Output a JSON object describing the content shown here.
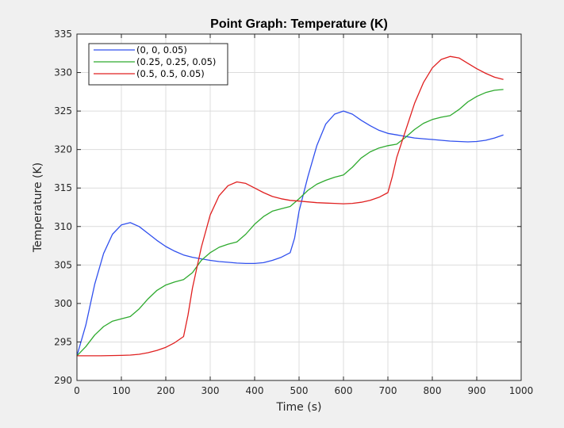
{
  "chart_data": {
    "type": "line",
    "title": "Point Graph: Temperature (K)",
    "xlabel": "Time (s)",
    "ylabel": "Temperature (K)",
    "xlim": [
      0,
      1000
    ],
    "ylim": [
      290,
      335
    ],
    "xticks": [
      0,
      100,
      200,
      300,
      400,
      500,
      600,
      700,
      800,
      900,
      1000
    ],
    "yticks": [
      290,
      295,
      300,
      305,
      310,
      315,
      320,
      325,
      330,
      335
    ],
    "grid": true,
    "legend_position": "top-left",
    "series": [
      {
        "name": "(0, 0, 0.05)",
        "color": "#3050ee",
        "points": [
          [
            0,
            293.2
          ],
          [
            20,
            297.2
          ],
          [
            40,
            302.5
          ],
          [
            60,
            306.5
          ],
          [
            80,
            309.0
          ],
          [
            100,
            310.2
          ],
          [
            120,
            310.5
          ],
          [
            140,
            310.0
          ],
          [
            160,
            309.1
          ],
          [
            180,
            308.2
          ],
          [
            200,
            307.4
          ],
          [
            220,
            306.8
          ],
          [
            240,
            306.3
          ],
          [
            260,
            306.0
          ],
          [
            280,
            305.8
          ],
          [
            300,
            305.6
          ],
          [
            320,
            305.45
          ],
          [
            340,
            305.35
          ],
          [
            360,
            305.25
          ],
          [
            380,
            305.2
          ],
          [
            400,
            305.2
          ],
          [
            420,
            305.3
          ],
          [
            440,
            305.6
          ],
          [
            460,
            306.0
          ],
          [
            480,
            306.6
          ],
          [
            490,
            308.5
          ],
          [
            500,
            312.0
          ],
          [
            520,
            316.5
          ],
          [
            540,
            320.5
          ],
          [
            560,
            323.3
          ],
          [
            580,
            324.6
          ],
          [
            600,
            325.0
          ],
          [
            620,
            324.6
          ],
          [
            640,
            323.8
          ],
          [
            660,
            323.1
          ],
          [
            680,
            322.5
          ],
          [
            700,
            322.1
          ],
          [
            720,
            321.9
          ],
          [
            740,
            321.7
          ],
          [
            760,
            321.5
          ],
          [
            780,
            321.4
          ],
          [
            800,
            321.3
          ],
          [
            820,
            321.2
          ],
          [
            840,
            321.1
          ],
          [
            860,
            321.05
          ],
          [
            880,
            321.0
          ],
          [
            900,
            321.05
          ],
          [
            920,
            321.2
          ],
          [
            940,
            321.5
          ],
          [
            960,
            321.9
          ]
        ]
      },
      {
        "name": "(0.25, 0.25, 0.05)",
        "color": "#2eaa2e",
        "points": [
          [
            0,
            293.2
          ],
          [
            20,
            294.4
          ],
          [
            40,
            295.9
          ],
          [
            60,
            297.0
          ],
          [
            80,
            297.7
          ],
          [
            100,
            298.0
          ],
          [
            120,
            298.3
          ],
          [
            140,
            299.3
          ],
          [
            160,
            300.6
          ],
          [
            180,
            301.7
          ],
          [
            200,
            302.4
          ],
          [
            220,
            302.8
          ],
          [
            240,
            303.1
          ],
          [
            260,
            304.0
          ],
          [
            280,
            305.6
          ],
          [
            300,
            306.6
          ],
          [
            320,
            307.3
          ],
          [
            340,
            307.7
          ],
          [
            360,
            308.0
          ],
          [
            380,
            309.0
          ],
          [
            400,
            310.3
          ],
          [
            420,
            311.3
          ],
          [
            440,
            312.0
          ],
          [
            460,
            312.3
          ],
          [
            480,
            312.6
          ],
          [
            500,
            313.6
          ],
          [
            520,
            314.7
          ],
          [
            540,
            315.5
          ],
          [
            560,
            316.0
          ],
          [
            580,
            316.4
          ],
          [
            600,
            316.7
          ],
          [
            620,
            317.7
          ],
          [
            640,
            318.9
          ],
          [
            660,
            319.7
          ],
          [
            680,
            320.2
          ],
          [
            700,
            320.5
          ],
          [
            720,
            320.7
          ],
          [
            740,
            321.6
          ],
          [
            760,
            322.6
          ],
          [
            780,
            323.4
          ],
          [
            800,
            323.9
          ],
          [
            820,
            324.2
          ],
          [
            840,
            324.4
          ],
          [
            860,
            325.2
          ],
          [
            880,
            326.2
          ],
          [
            900,
            326.9
          ],
          [
            920,
            327.4
          ],
          [
            940,
            327.7
          ],
          [
            960,
            327.8
          ]
        ]
      },
      {
        "name": "(0.5, 0.5, 0.05)",
        "color": "#e02020",
        "points": [
          [
            0,
            293.2
          ],
          [
            50,
            293.2
          ],
          [
            100,
            293.25
          ],
          [
            120,
            293.3
          ],
          [
            140,
            293.4
          ],
          [
            160,
            293.6
          ],
          [
            180,
            293.9
          ],
          [
            200,
            294.3
          ],
          [
            220,
            294.9
          ],
          [
            240,
            295.7
          ],
          [
            250,
            298.5
          ],
          [
            260,
            302.0
          ],
          [
            280,
            307.3
          ],
          [
            300,
            311.5
          ],
          [
            320,
            314.0
          ],
          [
            340,
            315.3
          ],
          [
            360,
            315.8
          ],
          [
            380,
            315.6
          ],
          [
            400,
            315.0
          ],
          [
            420,
            314.4
          ],
          [
            440,
            313.9
          ],
          [
            460,
            313.6
          ],
          [
            480,
            313.4
          ],
          [
            500,
            313.3
          ],
          [
            520,
            313.2
          ],
          [
            540,
            313.1
          ],
          [
            560,
            313.05
          ],
          [
            580,
            313.0
          ],
          [
            600,
            312.95
          ],
          [
            620,
            313.0
          ],
          [
            640,
            313.15
          ],
          [
            660,
            313.4
          ],
          [
            680,
            313.8
          ],
          [
            700,
            314.4
          ],
          [
            710,
            316.5
          ],
          [
            720,
            319.0
          ],
          [
            740,
            322.5
          ],
          [
            760,
            326.0
          ],
          [
            780,
            328.7
          ],
          [
            800,
            330.6
          ],
          [
            820,
            331.7
          ],
          [
            840,
            332.1
          ],
          [
            860,
            331.9
          ],
          [
            880,
            331.2
          ],
          [
            900,
            330.5
          ],
          [
            920,
            329.9
          ],
          [
            940,
            329.4
          ],
          [
            960,
            329.1
          ]
        ]
      }
    ]
  }
}
